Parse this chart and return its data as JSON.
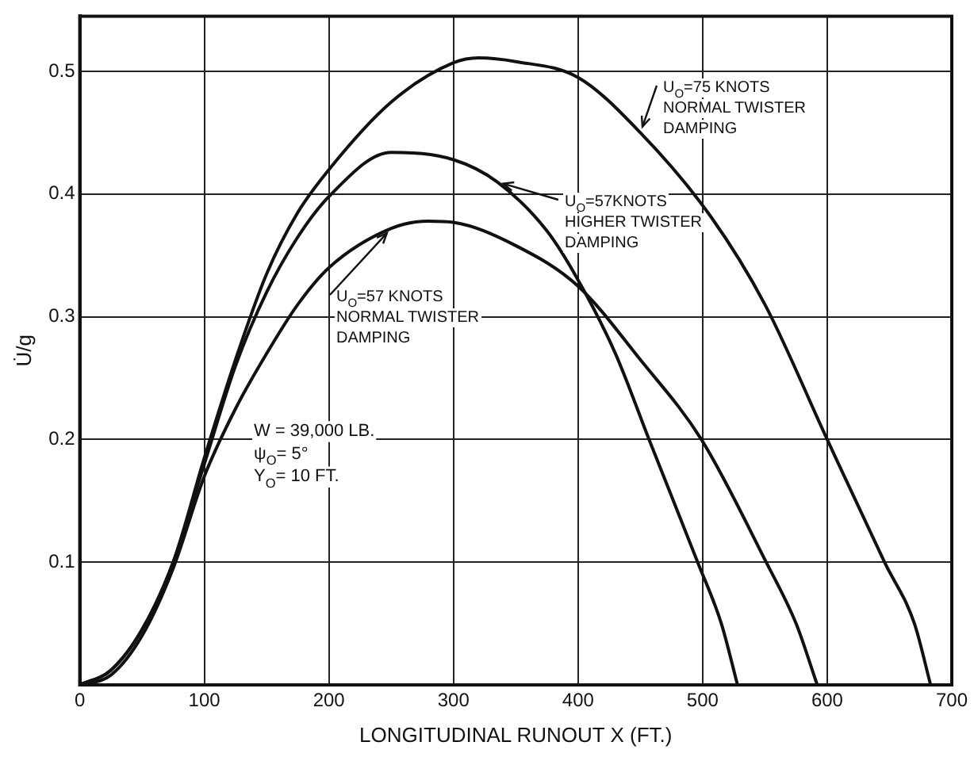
{
  "chart_data": {
    "type": "line",
    "xlabel": "LONGITUDINAL RUNOUT X (FT.)",
    "ylabel": "U̇/g",
    "xlim": [
      0,
      700
    ],
    "ylim": [
      0,
      0.545
    ],
    "xticks": [
      0,
      100,
      200,
      300,
      400,
      500,
      600,
      700
    ],
    "yticks": [
      0.1,
      0.2,
      0.3,
      0.4,
      0.5
    ],
    "grid": true,
    "marker": "none",
    "line_style": "solid",
    "series": [
      {
        "name": "U$_{O}$=75 KNOTS\nNORMAL TWISTER\nDAMPING",
        "color": "#111111",
        "x": [
          0,
          25,
          50,
          75,
          100,
          125,
          150,
          175,
          200,
          250,
          300,
          320,
          350,
          400,
          450,
          507,
          550,
          600,
          646,
          670,
          683
        ],
        "values": [
          0,
          0.012,
          0.045,
          0.1,
          0.185,
          0.265,
          0.335,
          0.385,
          0.42,
          0.475,
          0.507,
          0.511,
          0.508,
          0.495,
          0.45,
          0.381,
          0.31,
          0.2,
          0.1,
          0.05,
          0
        ]
      },
      {
        "name": "U$_{O}$=57KNOTS\nHIGHER TWISTER\nDAMPING",
        "color": "#111111",
        "x": [
          0,
          25,
          50,
          75,
          100,
          125,
          150,
          175,
          200,
          250,
          300,
          335,
          375,
          400,
          430,
          457,
          496,
          515,
          528
        ],
        "values": [
          0,
          0.012,
          0.045,
          0.1,
          0.18,
          0.26,
          0.32,
          0.365,
          0.398,
          0.434,
          0.428,
          0.41,
          0.37,
          0.33,
          0.27,
          0.2,
          0.1,
          0.05,
          0
        ]
      },
      {
        "name": "U$_{O}$=57 KNOTS\nNORMAL TWISTER\nDAMPING",
        "color": "#111111",
        "x": [
          0,
          25,
          50,
          75,
          100,
          125,
          150,
          175,
          200,
          250,
          280,
          300,
          350,
          400,
          450,
          499,
          551,
          575,
          592
        ],
        "values": [
          0,
          0.008,
          0.04,
          0.095,
          0.17,
          0.225,
          0.27,
          0.31,
          0.34,
          0.372,
          0.378,
          0.377,
          0.358,
          0.325,
          0.265,
          0.2,
          0.1,
          0.05,
          0
        ]
      }
    ],
    "annotations": [
      "W = 39,000 LB.\nψ$_{O}$= 5°\nY$_{O}$= 10 FT."
    ]
  }
}
